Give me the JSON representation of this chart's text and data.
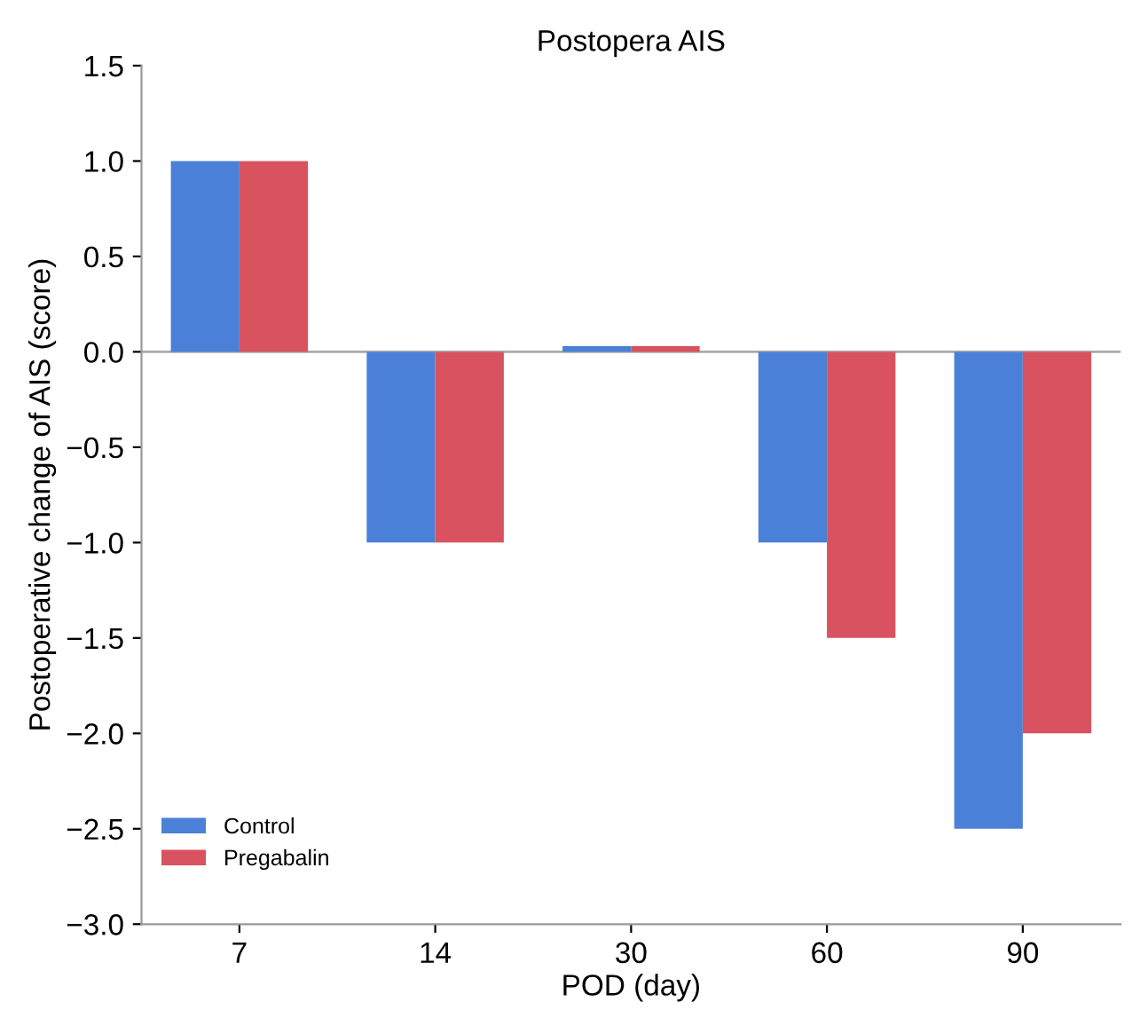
{
  "chart_data": {
    "type": "bar",
    "title": "Postopera AIS",
    "xlabel": "POD (day)",
    "ylabel": "Postoperative change of AIS (score)",
    "categories": [
      "7",
      "14",
      "30",
      "60",
      "90"
    ],
    "series": [
      {
        "name": "Control",
        "color": "#4a80d8",
        "values": [
          1,
          -1,
          0.03,
          -1,
          -2.5
        ]
      },
      {
        "name": "Pregabalin",
        "color": "#d8525f",
        "values": [
          1,
          -1,
          0.03,
          -1.5,
          -2
        ]
      }
    ],
    "ylim": [
      -3,
      1.5
    ],
    "yticks": [
      {
        "value": -3,
        "label": "−3.0"
      },
      {
        "value": -2.5,
        "label": "−2.5"
      },
      {
        "value": -2,
        "label": "−2.0"
      },
      {
        "value": -1.5,
        "label": "−1.5"
      },
      {
        "value": -1,
        "label": "−1.0"
      },
      {
        "value": -0.5,
        "label": "−0.5"
      },
      {
        "value": 0,
        "label": "0.0"
      },
      {
        "value": 0.5,
        "label": "0.5"
      },
      {
        "value": 1,
        "label": "1.0"
      },
      {
        "value": 1.5,
        "label": "1.5"
      }
    ],
    "ref_lines": [
      {
        "axis": "y",
        "value": 0,
        "color": "#aaaaaa"
      }
    ],
    "legend": "bottom left",
    "grid": false
  }
}
